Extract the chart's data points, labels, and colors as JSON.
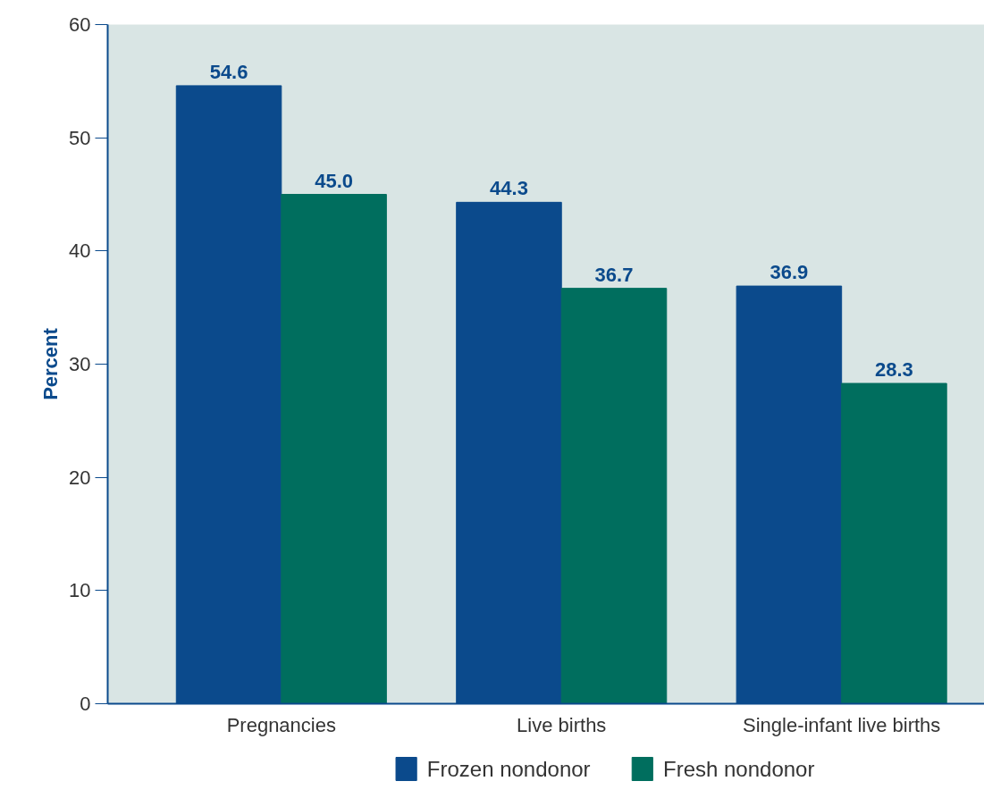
{
  "chart_data": {
    "type": "bar",
    "ylabel": "Percent",
    "categories": [
      "Pregnancies",
      "Live births",
      "Single-infant live births"
    ],
    "series": [
      {
        "name": "Frozen nondonor",
        "color": "#0b4a8c",
        "values": [
          54.6,
          44.3,
          36.9
        ],
        "value_labels": [
          "54.6",
          "44.3",
          "36.9"
        ]
      },
      {
        "name": "Fresh nondonor",
        "color": "#006e5e",
        "values": [
          45.0,
          36.7,
          28.3
        ],
        "value_labels": [
          "45.0",
          "36.7",
          "28.3"
        ]
      }
    ],
    "ylim": [
      0,
      60
    ],
    "yticks": [
      0,
      10,
      20,
      30,
      40,
      50,
      60
    ],
    "grid": false,
    "legend": "bottom"
  }
}
